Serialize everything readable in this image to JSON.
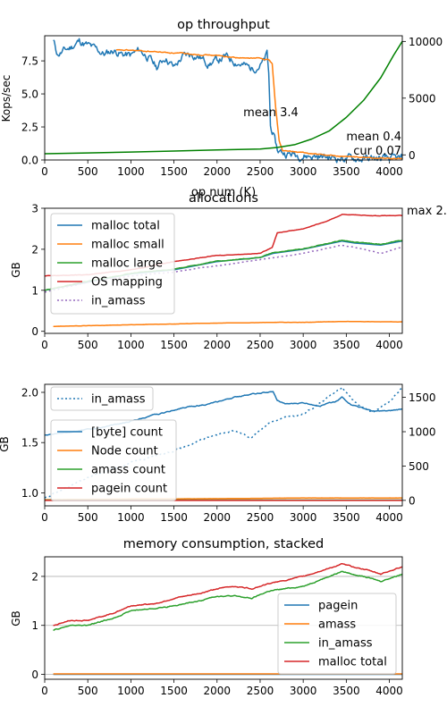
{
  "colors": {
    "c0": "#1f77b4",
    "c1": "#ff7f0e",
    "c2": "#2ca02c",
    "c3": "#d62728",
    "c4": "#9467bd",
    "green_line": "#008000",
    "grid": "#b0b0b0"
  },
  "chart_data": [
    {
      "type": "line",
      "title": "op throughput",
      "xlabel": "op num (K)",
      "ylabel": "Kops/sec",
      "xlim": [
        0,
        4150
      ],
      "ylim": [
        0,
        9.4
      ],
      "y2lim": [
        -450,
        10500
      ],
      "xticks": [
        0,
        500,
        1000,
        1500,
        2000,
        2500,
        3000,
        3500,
        4000
      ],
      "yticks": [
        0.0,
        2.5,
        5.0,
        7.5
      ],
      "ytick_labels": [
        "0.0",
        "2.5",
        "5.0",
        "7.5"
      ],
      "y2ticks": [
        0,
        5000,
        10000
      ],
      "y2tick_labels": [
        "0",
        "5000",
        "10000"
      ],
      "annotations": [
        "mean 3.4",
        "mean 0.4",
        "cur 0.07"
      ],
      "series": [
        {
          "color": "c0",
          "axis": "left",
          "noise": 0.45,
          "x": [
            100,
            150,
            300,
            400,
            550,
            700,
            800,
            900,
            1000,
            1100,
            1200,
            1300,
            1400,
            1500,
            1600,
            1700,
            1800,
            1900,
            2000,
            2100,
            2200,
            2300,
            2400,
            2500,
            2550,
            2580,
            2600,
            2620,
            2650,
            2700,
            2800,
            3000,
            3200,
            3400,
            3600,
            3800,
            4000,
            4150
          ],
          "y": [
            9.0,
            8.0,
            8.5,
            9.0,
            8.5,
            8.0,
            8.3,
            8.0,
            7.9,
            8.3,
            7.8,
            7.0,
            7.8,
            7.0,
            7.8,
            8.0,
            7.8,
            7.3,
            7.5,
            7.8,
            7.5,
            7.2,
            6.9,
            7.2,
            7.5,
            8.0,
            6.5,
            2.5,
            2.0,
            0.7,
            0.5,
            0.35,
            0.25,
            0.15,
            0.1,
            0.08,
            0.07,
            0.07
          ]
        },
        {
          "color": "c1",
          "axis": "left",
          "noise": 0.06,
          "x": [
            830,
            1000,
            1500,
            2000,
            2300,
            2500,
            2600,
            2640,
            2680,
            2720,
            2760,
            3000,
            3200,
            3500,
            3800,
            4150
          ],
          "y": [
            8.3,
            8.3,
            8.1,
            7.9,
            7.7,
            7.7,
            7.6,
            7.3,
            4.0,
            1.5,
            0.7,
            0.55,
            0.4,
            0.25,
            0.15,
            0.1
          ]
        },
        {
          "color": "green_line",
          "axis": "right",
          "noise": 0,
          "x": [
            0,
            500,
            1000,
            1500,
            2000,
            2500,
            2700,
            2900,
            3100,
            3300,
            3500,
            3700,
            3900,
            4050,
            4150
          ],
          "y": [
            100,
            170,
            250,
            340,
            430,
            520,
            650,
            900,
            1400,
            2100,
            3300,
            4800,
            6800,
            8800,
            10000
          ]
        }
      ]
    },
    {
      "type": "line",
      "title": "allocations",
      "xlabel": "",
      "ylabel": "GB",
      "xlim": [
        0,
        4150
      ],
      "ylim": [
        -0.05,
        3.0
      ],
      "xticks": [
        0,
        500,
        1000,
        1500,
        2000,
        2500,
        3000,
        3500,
        4000
      ],
      "yticks": [
        0,
        1,
        2,
        3
      ],
      "ytick_labels": [
        "0",
        "1",
        "2",
        "3"
      ],
      "annotations": [
        "max 2."
      ],
      "legend": [
        "malloc total",
        "malloc small",
        "malloc large",
        "OS mapping",
        "in_amass"
      ],
      "series": [
        {
          "name": "malloc total",
          "color": "c0",
          "dashed": false,
          "noise": 0,
          "x": [
            0,
            500,
            1000,
            1500,
            2000,
            2500,
            2650,
            3000,
            3450,
            3600,
            3900,
            4150
          ],
          "y": [
            1.0,
            1.2,
            1.4,
            1.5,
            1.7,
            1.8,
            1.9,
            2.0,
            2.2,
            2.15,
            2.1,
            2.2
          ]
        },
        {
          "name": "malloc small",
          "color": "c1",
          "dashed": false,
          "noise": 0.004,
          "x": [
            100,
            1000,
            2000,
            2700,
            3000,
            3500,
            4150
          ],
          "y": [
            0.12,
            0.16,
            0.2,
            0.22,
            0.22,
            0.24,
            0.23
          ]
        },
        {
          "name": "malloc large",
          "color": "c2",
          "dashed": false,
          "noise": 0.012,
          "x": [
            0,
            500,
            1000,
            1500,
            2000,
            2500,
            2650,
            3000,
            3450,
            3600,
            3900,
            4150
          ],
          "y": [
            1.0,
            1.22,
            1.41,
            1.52,
            1.71,
            1.8,
            1.92,
            2.01,
            2.22,
            2.17,
            2.12,
            2.22
          ]
        },
        {
          "name": "OS mapping",
          "color": "c3",
          "dashed": false,
          "noise": 0.008,
          "x": [
            0,
            500,
            1000,
            1500,
            2000,
            2500,
            2640,
            2700,
            3000,
            3300,
            3450,
            3800,
            4150
          ],
          "y": [
            1.35,
            1.38,
            1.5,
            1.7,
            1.85,
            1.9,
            2.05,
            2.4,
            2.5,
            2.7,
            2.85,
            2.82,
            2.82
          ]
        },
        {
          "name": "in_amass",
          "color": "c4",
          "dashed": true,
          "noise": 0.01,
          "x": [
            0,
            500,
            1000,
            1500,
            2000,
            2500,
            3000,
            3450,
            3700,
            3900,
            4150
          ],
          "y": [
            0.95,
            1.2,
            1.35,
            1.45,
            1.6,
            1.75,
            1.9,
            2.1,
            2.0,
            1.9,
            2.05
          ]
        }
      ]
    },
    {
      "type": "line",
      "title": "",
      "xlabel": "",
      "ylabel": "GB",
      "xlim": [
        0,
        4150
      ],
      "ylim": [
        0.87,
        2.08
      ],
      "y2lim": [
        -80,
        1690
      ],
      "xticks": [
        0,
        500,
        1000,
        1500,
        2000,
        2500,
        3000,
        3500,
        4000
      ],
      "yticks": [
        1.0,
        1.5,
        2.0
      ],
      "ytick_labels": [
        "1.0",
        "1.5",
        "2.0"
      ],
      "y2ticks": [
        0,
        500,
        1000,
        1500
      ],
      "y2tick_labels": [
        "0",
        "500",
        "1000",
        "1500"
      ],
      "legend_top": [
        "in_amass"
      ],
      "legend": [
        "[byte] count",
        "Node count",
        "amass count",
        "pagein count"
      ],
      "series": [
        {
          "name": "in_amass",
          "color": "c0",
          "dashed": true,
          "axis": "left",
          "noise": 0.012,
          "x": [
            0,
            500,
            1000,
            1500,
            2000,
            2200,
            2400,
            2600,
            2800,
            3000,
            3200,
            3450,
            3600,
            3800,
            4000,
            4150
          ],
          "y": [
            0.95,
            1.15,
            1.3,
            1.42,
            1.58,
            1.62,
            1.55,
            1.7,
            1.75,
            1.78,
            1.9,
            2.05,
            1.9,
            1.8,
            1.9,
            2.05
          ]
        },
        {
          "name": "[byte] count",
          "color": "c0",
          "dashed": false,
          "axis": "right",
          "noise": 12,
          "x": [
            0,
            300,
            600,
            1000,
            1300,
            1600,
            1900,
            2200,
            2400,
            2650,
            2700,
            2800,
            3000,
            3200,
            3400,
            3450,
            3550,
            3800,
            4000,
            4150
          ],
          "y": [
            950,
            1000,
            1050,
            1150,
            1250,
            1350,
            1400,
            1500,
            1550,
            1580,
            1450,
            1400,
            1420,
            1380,
            1450,
            1500,
            1400,
            1300,
            1300,
            1330
          ]
        },
        {
          "name": "Node count",
          "color": "c1",
          "dashed": false,
          "axis": "right",
          "noise": 1,
          "x": [
            0,
            1000,
            2000,
            2500,
            3000,
            4150
          ],
          "y": [
            10,
            20,
            25,
            30,
            35,
            35
          ]
        },
        {
          "name": "amass count",
          "color": "c2",
          "dashed": false,
          "axis": "right",
          "noise": 0,
          "x": [
            0,
            4150
          ],
          "y": [
            5,
            5
          ]
        },
        {
          "name": "pagein count",
          "color": "c3",
          "dashed": false,
          "axis": "right",
          "noise": 0,
          "x": [
            0,
            4150
          ],
          "y": [
            0,
            0
          ]
        }
      ]
    },
    {
      "type": "area",
      "title": "memory consumption, stacked",
      "xlabel": "",
      "ylabel": "GB",
      "xlim": [
        0,
        4150
      ],
      "ylim": [
        -0.1,
        2.4
      ],
      "xticks": [
        0,
        500,
        1000,
        1500,
        2000,
        2500,
        3000,
        3500,
        4000
      ],
      "yticks": [
        0,
        1,
        2
      ],
      "ytick_labels": [
        "0",
        "1",
        "2"
      ],
      "grid": "y",
      "legend": [
        "pagein",
        "amass",
        "in_amass",
        "malloc total"
      ],
      "series": [
        {
          "name": "pagein",
          "color": "c0",
          "noise": 0,
          "x": [
            100,
            4150
          ],
          "y": [
            0,
            0
          ]
        },
        {
          "name": "amass",
          "color": "c1",
          "noise": 0,
          "x": [
            100,
            4150
          ],
          "y": [
            0.01,
            0.01
          ]
        },
        {
          "name": "in_amass",
          "color": "c2",
          "noise": 0.015,
          "x": [
            100,
            300,
            500,
            800,
            1000,
            1300,
            1500,
            1800,
            2000,
            2200,
            2400,
            2600,
            3000,
            3450,
            3700,
            3900,
            4150
          ],
          "y": [
            0.9,
            1.0,
            1.0,
            1.15,
            1.3,
            1.35,
            1.4,
            1.5,
            1.6,
            1.6,
            1.55,
            1.7,
            1.8,
            2.1,
            2.0,
            1.9,
            2.05
          ]
        },
        {
          "name": "malloc total",
          "color": "c3",
          "noise": 0.015,
          "x": [
            100,
            300,
            500,
            800,
            1000,
            1300,
            1500,
            1800,
            2000,
            2200,
            2400,
            2600,
            3000,
            3450,
            3700,
            3900,
            4150
          ],
          "y": [
            1.0,
            1.1,
            1.1,
            1.25,
            1.4,
            1.45,
            1.55,
            1.65,
            1.75,
            1.8,
            1.75,
            1.85,
            2.0,
            2.25,
            2.15,
            2.05,
            2.2
          ]
        }
      ]
    }
  ]
}
